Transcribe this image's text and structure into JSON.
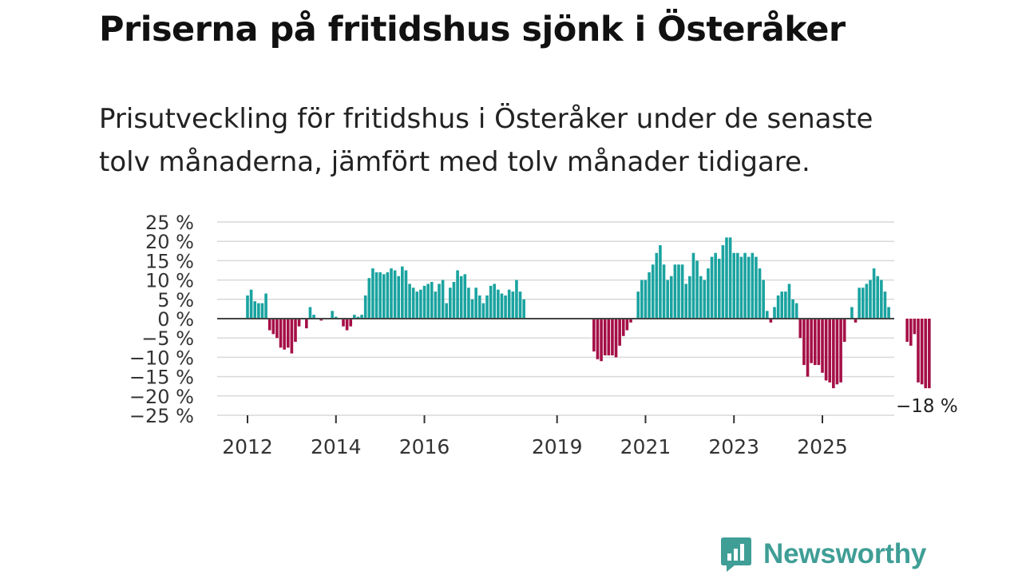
{
  "title": "Priserna på fritidshus sjönk i Österåker",
  "subtitle": "Prisutveckling för fritidshus i Österåker under de senaste tolv månaderna, jämfört med tolv månader tidigare.",
  "brand": "Newsworthy",
  "colors": {
    "positive": "#1aa3a0",
    "negative": "#a50f46",
    "grid": "#d9d9d9",
    "zero": "#444444",
    "brand": "#3f9e96"
  },
  "chart_data": {
    "type": "bar",
    "title": "Priserna på fritidshus sjönk i Österåker",
    "xlabel": "",
    "ylabel": "",
    "ylim": [
      -25,
      25
    ],
    "yticks": [
      25,
      20,
      15,
      10,
      5,
      0,
      -5,
      -10,
      -15,
      -20,
      -25
    ],
    "ytick_labels": [
      "25 %",
      "20 %",
      "15 %",
      "10 %",
      "5 %",
      "0 %",
      "−5 %",
      "−10 %",
      "−15 %",
      "−20 %",
      "−25 %"
    ],
    "xtick_labels": [
      "2012",
      "2014",
      "2016",
      "2019",
      "2021",
      "2023",
      "2025"
    ],
    "xtick_years": [
      2012,
      2014,
      2016,
      2019,
      2021,
      2023,
      2025
    ],
    "start": "2012-01",
    "end": "2026-01",
    "last_value_label": "−18 %",
    "values": [
      6,
      7.5,
      4.5,
      4,
      4,
      6.5,
      -3,
      -4,
      -5,
      -7.5,
      -8,
      -7.5,
      -9,
      -6,
      -2,
      0,
      -2.5,
      3,
      1,
      0,
      -0.5,
      0,
      0,
      2,
      0.5,
      0,
      -2,
      -3,
      -2,
      1,
      0.5,
      1,
      6,
      10.5,
      13,
      12,
      12,
      11.5,
      12,
      13,
      12.5,
      11,
      13.5,
      12.5,
      9,
      8,
      7,
      7.5,
      8.5,
      9,
      9.5,
      7,
      9,
      10,
      4,
      8,
      9.5,
      12.5,
      11,
      11.5,
      8,
      5,
      8,
      6,
      4,
      6,
      8.5,
      9,
      7.5,
      6.5,
      6,
      7.5,
      7,
      10,
      7,
      5,
      0,
      0,
      0,
      0,
      0,
      0,
      0,
      0,
      0,
      0,
      0,
      0,
      0,
      0,
      0,
      0,
      0,
      0,
      -8.5,
      -10.5,
      -11,
      -9.5,
      -9.5,
      -9.5,
      -10,
      -7,
      -4.5,
      -3,
      -1,
      0,
      7,
      10,
      10,
      12,
      14,
      17,
      19,
      14,
      10,
      11,
      14,
      14,
      14,
      9,
      11,
      17,
      15,
      11,
      10,
      13,
      16,
      17,
      15.5,
      19,
      21,
      21,
      17,
      17,
      16,
      17,
      16,
      17,
      16,
      13,
      10,
      2,
      -1,
      3,
      6,
      7,
      7,
      9,
      5,
      4,
      -5,
      -12,
      -15,
      -11.5,
      -12,
      -12,
      -14,
      -16,
      -16.5,
      -18,
      -17,
      -16.5,
      -6,
      0,
      3,
      -1,
      8,
      8,
      9,
      10,
      13,
      11,
      10,
      7,
      3,
      0,
      0,
      0,
      0,
      -6,
      -7,
      -4,
      -16.5,
      -17,
      -18,
      -18
    ]
  }
}
